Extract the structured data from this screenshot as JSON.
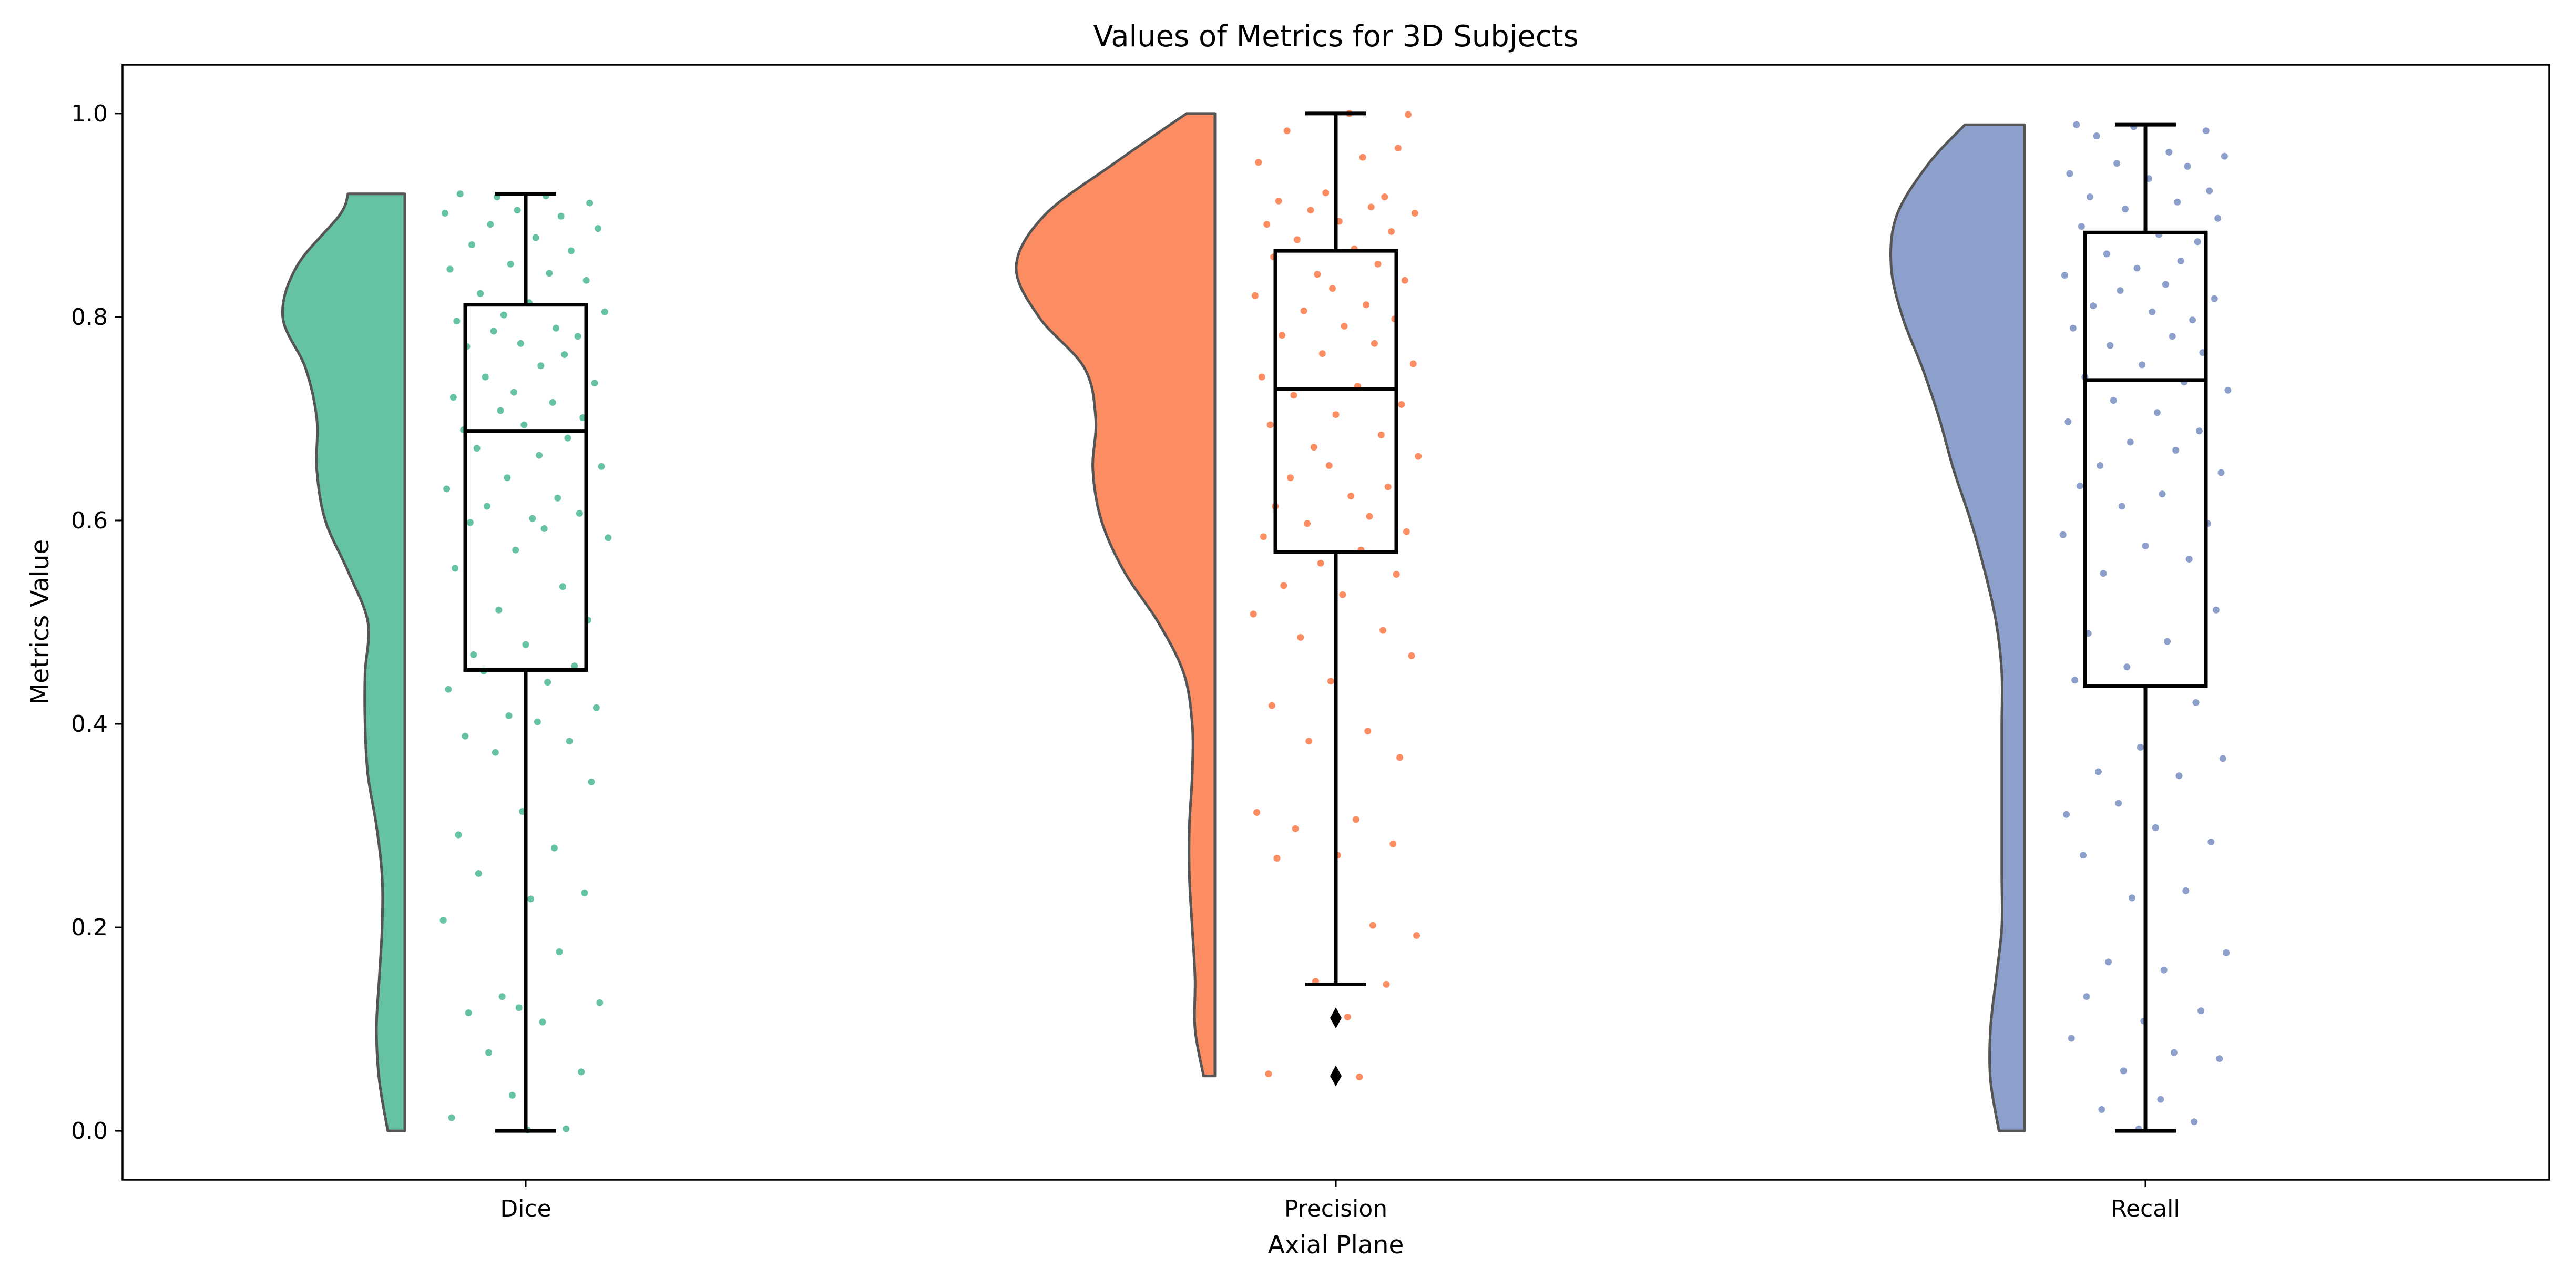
{
  "chart_data": {
    "type": "raincloud",
    "title": "Values of Metrics for 3D Subjects",
    "xlabel": "Axial Plane",
    "ylabel": "Metrics Value",
    "categories": [
      "Dice",
      "Precision",
      "Recall"
    ],
    "ylim": [
      -0.048,
      1.048
    ],
    "yticks": [
      0.0,
      0.2,
      0.4,
      0.6,
      0.8,
      1.0
    ],
    "ytick_labels": [
      "0.0",
      "0.2",
      "0.4",
      "0.6",
      "0.8",
      "1.0"
    ],
    "grid": false,
    "legend": "none",
    "series": [
      {
        "category": "Dice",
        "color": "#66c2a5",
        "box": {
          "whisker_low": 0.0,
          "q1": 0.453,
          "median": 0.688,
          "q3": 0.812,
          "whisker_high": 0.921
        },
        "outliers": [],
        "density": [
          [
            0.0,
            0.06
          ],
          [
            0.05,
            0.09
          ],
          [
            0.1,
            0.1
          ],
          [
            0.15,
            0.09
          ],
          [
            0.2,
            0.08
          ],
          [
            0.25,
            0.08
          ],
          [
            0.3,
            0.1
          ],
          [
            0.35,
            0.13
          ],
          [
            0.4,
            0.14
          ],
          [
            0.45,
            0.14
          ],
          [
            0.5,
            0.13
          ],
          [
            0.55,
            0.2
          ],
          [
            0.6,
            0.28
          ],
          [
            0.65,
            0.31
          ],
          [
            0.7,
            0.31
          ],
          [
            0.75,
            0.35
          ],
          [
            0.8,
            0.43
          ],
          [
            0.85,
            0.38
          ],
          [
            0.9,
            0.23
          ],
          [
            0.921,
            0.2
          ]
        ],
        "points": [
          0.921,
          0.919,
          0.918,
          0.912,
          0.905,
          0.902,
          0.899,
          0.891,
          0.887,
          0.878,
          0.871,
          0.865,
          0.852,
          0.847,
          0.843,
          0.836,
          0.823,
          0.814,
          0.805,
          0.802,
          0.796,
          0.789,
          0.786,
          0.781,
          0.774,
          0.771,
          0.763,
          0.752,
          0.741,
          0.735,
          0.726,
          0.721,
          0.716,
          0.708,
          0.701,
          0.694,
          0.689,
          0.681,
          0.671,
          0.664,
          0.653,
          0.642,
          0.631,
          0.622,
          0.614,
          0.607,
          0.602,
          0.598,
          0.592,
          0.583,
          0.571,
          0.553,
          0.535,
          0.512,
          0.502,
          0.478,
          0.468,
          0.457,
          0.452,
          0.441,
          0.434,
          0.416,
          0.408,
          0.402,
          0.388,
          0.383,
          0.372,
          0.343,
          0.314,
          0.291,
          0.278,
          0.253,
          0.234,
          0.228,
          0.207,
          0.176,
          0.132,
          0.126,
          0.121,
          0.116,
          0.107,
          0.077,
          0.058,
          0.035,
          0.013,
          0.002,
          0.001
        ],
        "jitter": [
          0.11,
          0.62,
          0.33,
          0.88,
          0.45,
          0.02,
          0.71,
          0.29,
          0.93,
          0.56,
          0.18,
          0.77,
          0.41,
          0.05,
          0.64,
          0.86,
          0.23,
          0.52,
          0.97,
          0.37,
          0.09,
          0.68,
          0.31,
          0.81,
          0.47,
          0.15,
          0.73,
          0.59,
          0.26,
          0.91,
          0.43,
          0.07,
          0.66,
          0.35,
          0.84,
          0.49,
          0.13,
          0.75,
          0.21,
          0.58,
          0.95,
          0.39,
          0.03,
          0.69,
          0.27,
          0.82,
          0.54,
          0.17,
          0.61,
          0.99,
          0.44,
          0.08,
          0.72,
          0.34,
          0.87,
          0.5,
          0.19,
          0.79,
          0.25,
          0.63,
          0.04,
          0.92,
          0.4,
          0.57,
          0.14,
          0.76,
          0.32,
          0.89,
          0.48,
          0.1,
          0.67,
          0.22,
          0.85,
          0.53,
          0.01,
          0.7,
          0.36,
          0.94,
          0.46,
          0.16,
          0.6,
          0.28,
          0.83,
          0.42,
          0.06,
          0.74,
          0.51
        ]
      },
      {
        "category": "Precision",
        "color": "#fc8d62",
        "box": {
          "whisker_low": 0.144,
          "q1": 0.569,
          "median": 0.729,
          "q3": 0.865,
          "whisker_high": 1.0
        },
        "outliers": [
          0.111,
          0.054
        ],
        "density": [
          [
            0.054,
            0.04
          ],
          [
            0.1,
            0.07
          ],
          [
            0.15,
            0.07
          ],
          [
            0.2,
            0.08
          ],
          [
            0.25,
            0.09
          ],
          [
            0.3,
            0.09
          ],
          [
            0.35,
            0.08
          ],
          [
            0.4,
            0.08
          ],
          [
            0.45,
            0.11
          ],
          [
            0.5,
            0.2
          ],
          [
            0.55,
            0.32
          ],
          [
            0.6,
            0.4
          ],
          [
            0.65,
            0.43
          ],
          [
            0.7,
            0.42
          ],
          [
            0.75,
            0.46
          ],
          [
            0.8,
            0.62
          ],
          [
            0.85,
            0.7
          ],
          [
            0.9,
            0.6
          ],
          [
            0.95,
            0.36
          ],
          [
            1.0,
            0.1
          ]
        ],
        "points": [
          1.0,
          0.999,
          0.983,
          0.966,
          0.957,
          0.952,
          0.922,
          0.918,
          0.914,
          0.908,
          0.905,
          0.902,
          0.894,
          0.891,
          0.884,
          0.876,
          0.867,
          0.859,
          0.852,
          0.842,
          0.836,
          0.828,
          0.821,
          0.812,
          0.806,
          0.798,
          0.791,
          0.782,
          0.774,
          0.764,
          0.754,
          0.741,
          0.732,
          0.723,
          0.714,
          0.704,
          0.694,
          0.684,
          0.672,
          0.663,
          0.654,
          0.642,
          0.633,
          0.624,
          0.614,
          0.604,
          0.597,
          0.589,
          0.584,
          0.571,
          0.558,
          0.547,
          0.536,
          0.527,
          0.508,
          0.492,
          0.485,
          0.467,
          0.442,
          0.418,
          0.393,
          0.383,
          0.367,
          0.313,
          0.306,
          0.297,
          0.282,
          0.271,
          0.268,
          0.202,
          0.192,
          0.147,
          0.144,
          0.112,
          0.056,
          0.053
        ],
        "jitter": [
          0.58,
          0.93,
          0.21,
          0.87,
          0.66,
          0.04,
          0.44,
          0.79,
          0.16,
          0.71,
          0.35,
          0.97,
          0.52,
          0.09,
          0.83,
          0.27,
          0.61,
          0.13,
          0.75,
          0.39,
          0.91,
          0.48,
          0.02,
          0.68,
          0.31,
          0.85,
          0.55,
          0.18,
          0.73,
          0.42,
          0.96,
          0.06,
          0.63,
          0.25,
          0.89,
          0.5,
          0.11,
          0.77,
          0.37,
          0.99,
          0.46,
          0.23,
          0.81,
          0.59,
          0.14,
          0.7,
          0.33,
          0.92,
          0.07,
          0.65,
          0.41,
          0.86,
          0.19,
          0.54,
          0.01,
          0.78,
          0.29,
          0.95,
          0.47,
          0.12,
          0.69,
          0.34,
          0.88,
          0.03,
          0.62,
          0.26,
          0.84,
          0.51,
          0.15,
          0.72,
          0.98,
          0.38,
          0.8,
          0.57,
          0.1,
          0.64
        ]
      },
      {
        "category": "Recall",
        "color": "#8da0cb",
        "box": {
          "whisker_low": 0.0,
          "q1": 0.437,
          "median": 0.738,
          "q3": 0.883,
          "whisker_high": 0.989
        },
        "outliers": [],
        "density": [
          [
            0.0,
            0.09
          ],
          [
            0.05,
            0.12
          ],
          [
            0.1,
            0.12
          ],
          [
            0.15,
            0.1
          ],
          [
            0.2,
            0.08
          ],
          [
            0.25,
            0.08
          ],
          [
            0.3,
            0.08
          ],
          [
            0.35,
            0.08
          ],
          [
            0.4,
            0.08
          ],
          [
            0.45,
            0.08
          ],
          [
            0.5,
            0.1
          ],
          [
            0.55,
            0.14
          ],
          [
            0.6,
            0.19
          ],
          [
            0.65,
            0.25
          ],
          [
            0.7,
            0.3
          ],
          [
            0.75,
            0.36
          ],
          [
            0.8,
            0.43
          ],
          [
            0.85,
            0.47
          ],
          [
            0.9,
            0.45
          ],
          [
            0.95,
            0.34
          ],
          [
            0.989,
            0.21
          ]
        ],
        "points": [
          0.989,
          0.987,
          0.983,
          0.978,
          0.962,
          0.958,
          0.951,
          0.948,
          0.941,
          0.936,
          0.924,
          0.918,
          0.913,
          0.906,
          0.897,
          0.889,
          0.881,
          0.874,
          0.862,
          0.855,
          0.848,
          0.841,
          0.832,
          0.826,
          0.818,
          0.811,
          0.805,
          0.797,
          0.789,
          0.781,
          0.772,
          0.765,
          0.753,
          0.741,
          0.736,
          0.728,
          0.718,
          0.706,
          0.697,
          0.688,
          0.677,
          0.669,
          0.654,
          0.647,
          0.634,
          0.626,
          0.614,
          0.597,
          0.586,
          0.575,
          0.562,
          0.548,
          0.512,
          0.489,
          0.481,
          0.456,
          0.443,
          0.421,
          0.377,
          0.366,
          0.353,
          0.349,
          0.322,
          0.311,
          0.298,
          0.284,
          0.271,
          0.236,
          0.229,
          0.175,
          0.166,
          0.158,
          0.132,
          0.118,
          0.108,
          0.091,
          0.077,
          0.071,
          0.059,
          0.031,
          0.021,
          0.009,
          0.002
        ],
        "jitter": [
          0.09,
          0.43,
          0.86,
          0.21,
          0.64,
          0.97,
          0.33,
          0.75,
          0.05,
          0.52,
          0.88,
          0.17,
          0.69,
          0.38,
          0.93,
          0.12,
          0.58,
          0.81,
          0.27,
          0.71,
          0.45,
          0.02,
          0.62,
          0.35,
          0.91,
          0.19,
          0.54,
          0.78,
          0.07,
          0.66,
          0.29,
          0.84,
          0.48,
          0.14,
          0.73,
          0.99,
          0.31,
          0.57,
          0.04,
          0.82,
          0.41,
          0.68,
          0.23,
          0.95,
          0.11,
          0.6,
          0.36,
          0.87,
          0.01,
          0.5,
          0.76,
          0.25,
          0.92,
          0.16,
          0.63,
          0.39,
          0.08,
          0.8,
          0.47,
          0.96,
          0.22,
          0.7,
          0.34,
          0.03,
          0.56,
          0.89,
          0.13,
          0.74,
          0.42,
          0.98,
          0.28,
          0.61,
          0.15,
          0.83,
          0.49,
          0.06,
          0.67,
          0.94,
          0.37,
          0.59,
          0.24,
          0.79,
          0.46
        ]
      }
    ]
  }
}
